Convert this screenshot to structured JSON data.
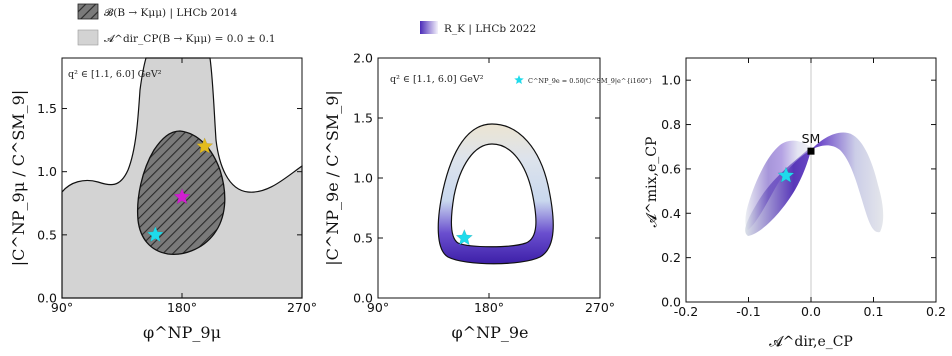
{
  "chart_data": [
    {
      "type": "region",
      "xlabel": "φ^NP_9μ",
      "ylabel": "|C^NP_9μ / C^SM_9|",
      "x_ticks": [
        "90°",
        "180°",
        "270°"
      ],
      "y_ticks": [
        "0.0",
        "0.5",
        "1.0",
        "1.5"
      ],
      "xlim": [
        90,
        270
      ],
      "ylim": [
        0,
        1.9
      ],
      "annotation": "q² ∈ [1.1, 6.0] GeV²",
      "legend": [
        {
          "label": "𝓑(B → Kμμ) | LHCb 2014",
          "style": "hatched",
          "color": "#555555"
        },
        {
          "label": "𝓐^dir_CP(B → Kμμ) = 0.0 ± 0.1",
          "style": "filled",
          "color": "#d3d3d3"
        }
      ],
      "markers": [
        {
          "x": 197,
          "y": 1.2,
          "color": "#e3bb1d"
        },
        {
          "x": 180,
          "y": 0.8,
          "color": "#d11fd1"
        },
        {
          "x": 160,
          "y": 0.5,
          "color": "#1fdbeb"
        }
      ]
    },
    {
      "type": "region",
      "xlabel": "φ^NP_9e",
      "ylabel": "|C^NP_9e / C^SM_9|",
      "x_ticks": [
        "90°",
        "180°",
        "270°"
      ],
      "y_ticks": [
        "0.0",
        "0.5",
        "1.0",
        "1.5",
        "2.0"
      ],
      "xlim": [
        90,
        270
      ],
      "ylim": [
        0,
        2.0
      ],
      "annotation": "q² ∈ [1.1, 6.0] GeV²",
      "legend": [
        {
          "label": "R_K | LHCb 2022",
          "style": "gradient",
          "color_from": "#5b2ec0",
          "color_to": "#ffffff"
        },
        {
          "label": "C^NP_9e = 0.50|C^SM_9|e^{i160°}",
          "style": "star",
          "color": "#1fdbeb"
        }
      ],
      "markers": [
        {
          "x": 160,
          "y": 0.5,
          "color": "#1fdbeb"
        }
      ]
    },
    {
      "type": "scatter",
      "xlabel": "𝓐^dir,e_CP",
      "ylabel": "𝓐^mix,e_CP",
      "x_ticks": [
        "-0.2",
        "-0.1",
        "0.0",
        "0.1",
        "0.2"
      ],
      "y_ticks": [
        "0.0",
        "0.2",
        "0.4",
        "0.6",
        "0.8",
        "1.0"
      ],
      "xlim": [
        -0.2,
        0.2
      ],
      "ylim": [
        0,
        1.1
      ],
      "markers": [
        {
          "label": "SM",
          "x": 0.0,
          "y": 0.68,
          "color": "#000000"
        },
        {
          "x": -0.04,
          "y": 0.57,
          "color": "#1fdbeb"
        }
      ]
    }
  ]
}
